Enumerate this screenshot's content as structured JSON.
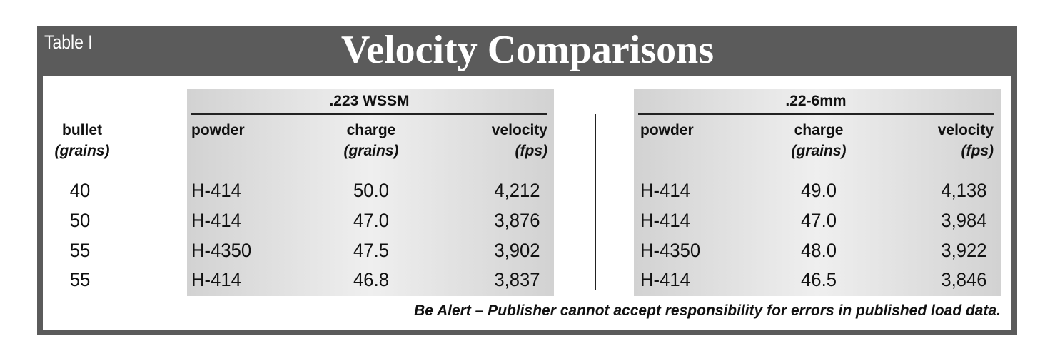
{
  "header": {
    "label": "Table I",
    "title": "Velocity Comparisons"
  },
  "table": {
    "bullet_header": [
      "bullet",
      "(grains)"
    ],
    "bullets": [
      "40",
      "50",
      "55",
      "55"
    ],
    "groups": [
      {
        "name": ".223 WSSM",
        "columns": [
          [
            "powder"
          ],
          [
            "charge",
            "(grains)"
          ],
          [
            "velocity",
            "(fps)"
          ]
        ],
        "rows": [
          [
            "H-414",
            "50.0",
            "4,212"
          ],
          [
            "H-414",
            "47.0",
            "3,876"
          ],
          [
            "H-4350",
            "47.5",
            "3,902"
          ],
          [
            "H-414",
            "46.8",
            "3,837"
          ]
        ]
      },
      {
        "name": ".22-6mm",
        "columns": [
          [
            "powder"
          ],
          [
            "charge",
            "(grains)"
          ],
          [
            "velocity",
            "(fps)"
          ]
        ],
        "rows": [
          [
            "H-414",
            "49.0",
            "4,138"
          ],
          [
            "H-414",
            "47.0",
            "3,984"
          ],
          [
            "H-4350",
            "48.0",
            "3,922"
          ],
          [
            "H-414",
            "46.5",
            "3,846"
          ]
        ]
      }
    ]
  },
  "footer": "Be Alert – Publisher cannot accept responsibility for errors in published load data."
}
